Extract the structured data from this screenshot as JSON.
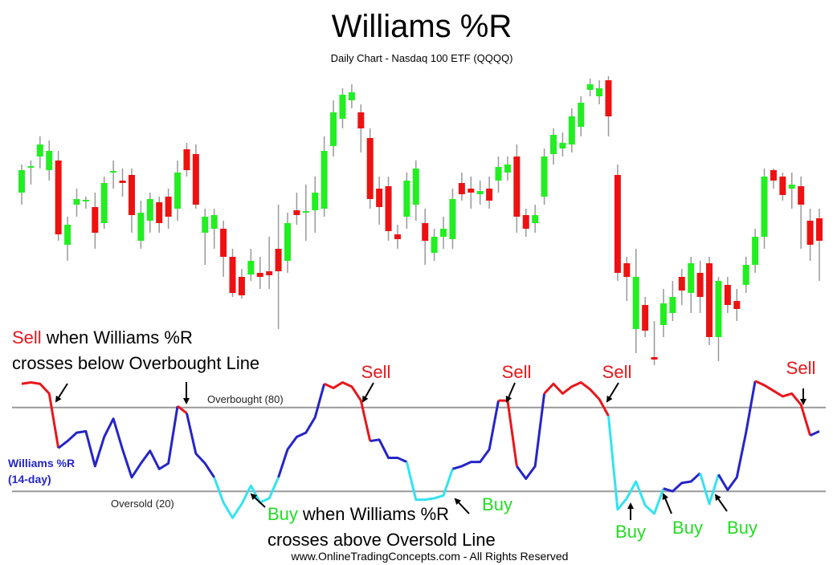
{
  "chart_data": [
    {
      "type": "candlestick",
      "title": "Williams %R",
      "subtitle": "Daily Chart - Nasdaq 100 ETF (QQQQ)",
      "ylim": [
        0,
        370
      ],
      "up_color": "#22ee22",
      "down_color": "#ee1111",
      "wick_color": "#999999",
      "open": [
        220,
        251,
        265,
        248,
        260,
        155,
        205,
        210,
        202,
        182,
        245,
        235,
        242,
        160,
        185,
        208,
        215,
        200,
        274,
        268,
        170,
        175,
        175,
        140,
        115,
        118,
        120,
        122,
        150,
        135,
        198,
        195,
        198,
        200,
        278,
        312,
        335,
        320,
        288,
        225,
        228,
        168,
        190,
        205,
        182,
        145,
        165,
        162,
        232,
        225,
        218,
        225,
        235,
        245,
        265,
        192,
        182,
        215,
        268,
        275,
        280,
        302,
        348,
        340,
        360,
        242,
        132,
        50,
        80,
        15,
        55,
        70,
        115,
        95,
        120,
        132,
        40,
        105,
        85,
        105,
        130,
        165,
        248,
        240,
        225,
        228,
        185,
        188
      ],
      "high": [
        255,
        260,
        290,
        285,
        272,
        190,
        225,
        215,
        220,
        240,
        260,
        250,
        250,
        210,
        220,
        215,
        225,
        260,
        282,
        280,
        200,
        200,
        185,
        150,
        125,
        150,
        140,
        165,
        205,
        195,
        220,
        230,
        240,
        290,
        335,
        350,
        355,
        330,
        300,
        240,
        240,
        180,
        245,
        260,
        200,
        175,
        190,
        225,
        245,
        240,
        235,
        240,
        265,
        265,
        280,
        200,
        205,
        275,
        300,
        295,
        325,
        340,
        362,
        360,
        365,
        255,
        140,
        150,
        90,
        60,
        100,
        110,
        125,
        140,
        135,
        140,
        115,
        115,
        100,
        140,
        175,
        250,
        250,
        245,
        245,
        240,
        200,
        200
      ],
      "low": [
        205,
        230,
        250,
        235,
        160,
        135,
        190,
        200,
        150,
        175,
        225,
        215,
        170,
        150,
        170,
        170,
        175,
        185,
        240,
        200,
        130,
        150,
        115,
        90,
        88,
        110,
        100,
        100,
        50,
        120,
        180,
        160,
        170,
        190,
        265,
        300,
        325,
        270,
        200,
        180,
        160,
        150,
        175,
        185,
        130,
        135,
        150,
        150,
        210,
        200,
        205,
        200,
        220,
        235,
        170,
        165,
        170,
        205,
        255,
        265,
        270,
        290,
        340,
        330,
        290,
        110,
        85,
        20,
        40,
        5,
        40,
        60,
        80,
        70,
        70,
        30,
        10,
        70,
        60,
        95,
        120,
        150,
        225,
        210,
        200,
        150,
        135,
        110
      ],
      "close": [
        248,
        253,
        280,
        272,
        168,
        180,
        212,
        211,
        170,
        232,
        247,
        232,
        192,
        195,
        212,
        182,
        190,
        245,
        248,
        205,
        190,
        192,
        140,
        95,
        92,
        135,
        115,
        117,
        122,
        182,
        192,
        197,
        220,
        272,
        320,
        342,
        345,
        300,
        212,
        202,
        172,
        162,
        235,
        250,
        160,
        165,
        175,
        212,
        218,
        220,
        222,
        210,
        252,
        255,
        190,
        175,
        192,
        265,
        292,
        282,
        315,
        332,
        355,
        350,
        315,
        120,
        115,
        115,
        48,
        12,
        82,
        90,
        98,
        132,
        90,
        40,
        110,
        80,
        75,
        130,
        165,
        240,
        235,
        217,
        230,
        205,
        155,
        160
      ]
    },
    {
      "type": "line",
      "ylabel": [
        "Williams %R",
        "(14-day)"
      ],
      "ylim": [
        0,
        100
      ],
      "values": [
        97,
        98,
        97,
        90,
        51,
        56,
        62,
        63,
        38,
        59,
        72,
        50,
        30,
        40,
        49,
        36,
        40,
        81,
        76,
        47,
        40,
        30,
        12,
        1,
        11,
        24,
        12,
        15,
        30,
        50,
        59,
        62,
        73,
        97,
        94,
        98,
        95,
        85,
        56,
        57,
        44,
        44,
        41,
        14,
        14,
        15,
        17,
        36,
        38,
        41,
        41,
        50,
        85,
        85,
        38,
        29,
        38,
        90,
        97,
        90,
        95,
        98,
        93,
        86,
        74,
        7,
        15,
        27,
        10,
        4,
        22,
        20,
        26,
        27,
        33,
        11,
        32,
        21,
        30,
        62,
        99,
        96,
        92,
        88,
        90,
        82,
        60,
        63
      ],
      "levels": [
        {
          "value": 80,
          "label": "Overbought (80)"
        },
        {
          "value": 20,
          "label": "Oversold (20)"
        }
      ],
      "level_color": "#999999",
      "colors": {
        "above": "#e8161b",
        "between": "#2525c8",
        "below": "#33e3f0"
      },
      "annotations": {
        "sell_rule": {
          "keyword": "Sell",
          "text": "when Williams %R",
          "line2": "crosses below Overbought Line"
        },
        "buy_rule": {
          "keyword": "Buy",
          "text": "when Williams %R",
          "line2": "crosses above Oversold Line"
        },
        "sell_labels": [
          "Sell",
          "Sell",
          "Sell",
          "Sell"
        ],
        "buy_labels": [
          "Buy",
          "Buy",
          "Buy",
          "Buy"
        ]
      },
      "footer": "www.OnlineTradingConcepts.com - All Rights Reserved"
    }
  ]
}
